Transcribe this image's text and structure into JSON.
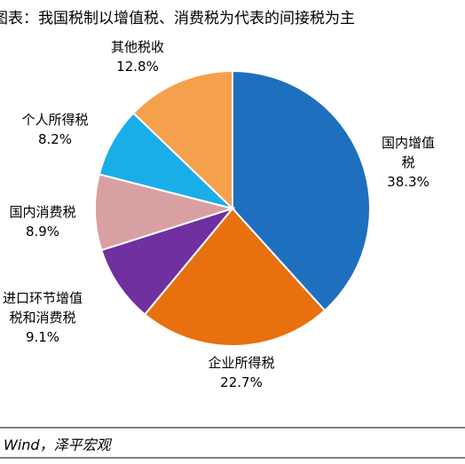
{
  "chart_data": {
    "type": "pie",
    "title": "图表：我国税制以增值税、消费税为代表的间接税为主",
    "source": "Wind，泽平宏观",
    "categories": [
      "国内增值税",
      "企业所得税",
      "进口环节增值税和消费税",
      "国内消费税",
      "个人所得税",
      "其他税收"
    ],
    "values": [
      38.3,
      22.7,
      9.1,
      8.9,
      8.2,
      12.8
    ],
    "value_labels": [
      "38.3%",
      "22.7%",
      "9.1%",
      "8.9%",
      "8.2%",
      "12.8%"
    ],
    "colors": [
      "#1f6fbf",
      "#e8700f",
      "#7030a0",
      "#d9a0a3",
      "#1aaee8",
      "#f5a04d"
    ]
  }
}
